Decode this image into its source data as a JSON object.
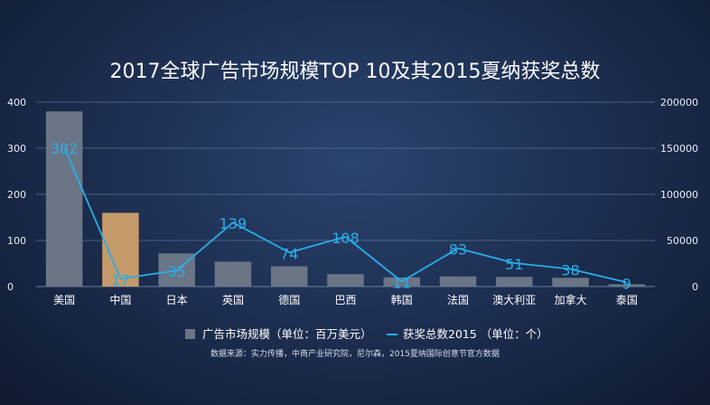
{
  "chart_data": {
    "type": "bar",
    "title": "2017全球广告市场规模TOP 10及其2015夏纳获奖总数",
    "categories": [
      "美国",
      "中国",
      "日本",
      "英国",
      "德国",
      "巴西",
      "韩国",
      "法国",
      "澳大利亚",
      "加拿大",
      "泰国"
    ],
    "series": [
      {
        "name": "广告市场规模（单位：百万美元）",
        "type": "bar",
        "axis": "left",
        "values": [
          380,
          160,
          72,
          54,
          44,
          27,
          20,
          22,
          21,
          19,
          5
        ]
      },
      {
        "name": "获奖总数2015 （单位：个）",
        "type": "line",
        "axis": "right",
        "values": [
          151000,
          8500,
          17500,
          69500,
          37000,
          54000,
          5500,
          41500,
          25500,
          19000,
          4500
        ],
        "labels": [
          "302",
          "17",
          "35",
          "139",
          "74",
          "108",
          "11",
          "83",
          "51",
          "38",
          "9"
        ]
      }
    ],
    "y_left": {
      "ylim": [
        0,
        400
      ],
      "ticks": [
        "0",
        "100",
        "200",
        "300",
        "400"
      ]
    },
    "y_right": {
      "ylim": [
        0,
        200000
      ],
      "ticks": [
        "0",
        "50000",
        "100000",
        "150000",
        "200000"
      ]
    },
    "highlight_category": "中国",
    "grid": true,
    "legend_position": "bottom",
    "source_note": "数据来源：实力传播，中商产业研究院，尼尔森，2015夏纳国际创意节官方数据",
    "colors": {
      "bar": "#6a7586",
      "bar_highlight": "#c59a6a",
      "line": "#29aee8",
      "grid": "#5b6e8e"
    }
  }
}
